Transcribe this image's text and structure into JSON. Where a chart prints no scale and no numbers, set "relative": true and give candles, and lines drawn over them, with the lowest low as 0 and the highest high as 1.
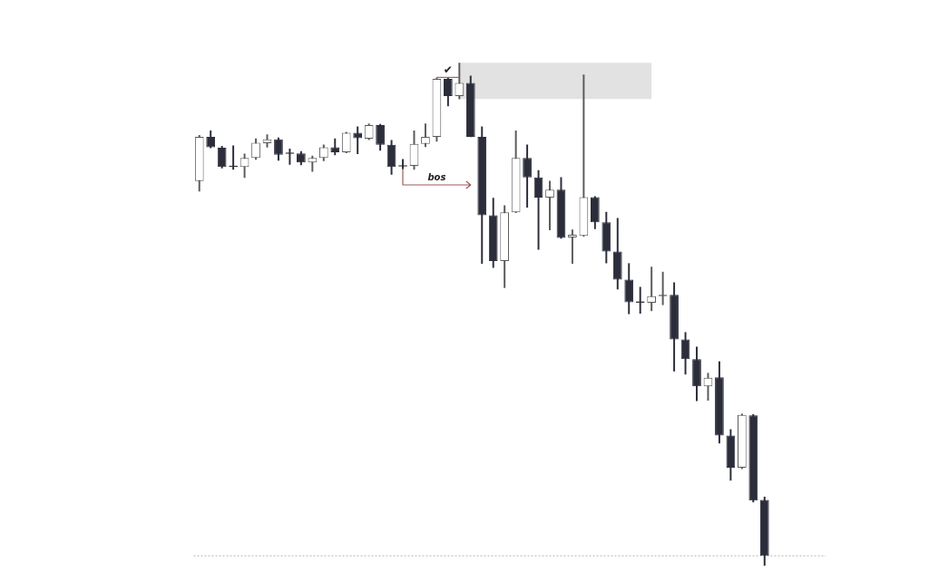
{
  "chart_data": {
    "type": "candlestick",
    "relative": true,
    "tick_labels": false,
    "categories": [
      null,
      null,
      null,
      null,
      null,
      null,
      null,
      null,
      null,
      null,
      null,
      null,
      null,
      null,
      null,
      null,
      null,
      null,
      null,
      null,
      null,
      null,
      null,
      null,
      null,
      null,
      null,
      null,
      null,
      null,
      null,
      null,
      null,
      null,
      null,
      null,
      null,
      null,
      null,
      null,
      null,
      null,
      null,
      null,
      null,
      null,
      null,
      null,
      null,
      null,
      null
    ],
    "ohlc": [
      [
        0.765,
        0.856,
        0.745,
        0.853
      ],
      [
        0.853,
        0.865,
        0.831,
        0.832
      ],
      [
        0.831,
        0.834,
        0.791,
        0.793
      ],
      [
        0.794,
        0.835,
        0.788,
        0.793
      ],
      [
        0.793,
        0.819,
        0.772,
        0.811
      ],
      [
        0.811,
        0.849,
        0.808,
        0.841
      ],
      [
        0.84,
        0.857,
        0.832,
        0.848
      ],
      [
        0.848,
        0.851,
        0.806,
        0.817
      ],
      [
        0.82,
        0.829,
        0.798,
        0.819
      ],
      [
        0.82,
        0.824,
        0.797,
        0.802
      ],
      [
        0.802,
        0.815,
        0.784,
        0.811
      ],
      [
        0.811,
        0.837,
        0.805,
        0.832
      ],
      [
        0.832,
        0.849,
        0.817,
        0.822
      ],
      [
        0.822,
        0.862,
        0.821,
        0.861
      ],
      [
        0.861,
        0.873,
        0.819,
        0.85
      ],
      [
        0.849,
        0.879,
        0.847,
        0.876
      ],
      [
        0.876,
        0.878,
        0.826,
        0.837
      ],
      [
        0.837,
        0.846,
        0.778,
        0.793
      ],
      [
        0.795,
        0.808,
        0.789,
        0.794
      ],
      [
        0.795,
        0.865,
        0.788,
        0.839
      ],
      [
        0.839,
        0.879,
        0.833,
        0.853
      ],
      [
        0.853,
        0.97,
        0.844,
        0.968
      ],
      [
        0.968,
        0.97,
        0.914,
        0.934
      ],
      [
        0.934,
        1.0,
        0.928,
        0.96
      ],
      [
        0.96,
        0.974,
        0.853,
        0.853
      ],
      [
        0.853,
        0.873,
        0.601,
        0.697
      ],
      [
        0.697,
        0.731,
        0.593,
        0.606
      ],
      [
        0.606,
        0.716,
        0.553,
        0.703
      ],
      [
        0.703,
        0.865,
        0.702,
        0.811
      ],
      [
        0.811,
        0.837,
        0.713,
        0.772
      ],
      [
        0.772,
        0.786,
        0.629,
        0.732
      ],
      [
        0.732,
        0.765,
        0.668,
        0.748
      ],
      [
        0.748,
        0.772,
        0.651,
        0.652
      ],
      [
        0.653,
        0.668,
        0.601,
        0.658
      ],
      [
        0.656,
        0.976,
        0.655,
        0.733
      ],
      [
        0.733,
        0.734,
        0.67,
        0.683
      ],
      [
        0.683,
        0.703,
        0.602,
        0.625
      ],
      [
        0.625,
        0.691,
        0.55,
        0.569
      ],
      [
        0.569,
        0.601,
        0.501,
        0.524
      ],
      [
        0.524,
        0.554,
        0.502,
        0.523
      ],
      [
        0.523,
        0.594,
        0.507,
        0.536
      ],
      [
        0.536,
        0.584,
        0.519,
        0.539
      ],
      [
        0.539,
        0.563,
        0.387,
        0.45
      ],
      [
        0.45,
        0.464,
        0.381,
        0.411
      ],
      [
        0.411,
        0.435,
        0.328,
        0.357
      ],
      [
        0.357,
        0.383,
        0.329,
        0.374
      ],
      [
        0.375,
        0.406,
        0.244,
        0.259
      ],
      [
        0.259,
        0.271,
        0.17,
        0.195
      ],
      [
        0.195,
        0.302,
        0.193,
        0.3
      ],
      [
        0.299,
        0.301,
        0.127,
        0.13
      ],
      [
        0.131,
        0.137,
        0.0,
        0.02
      ]
    ],
    "colors": [
      "#5a5a5a",
      "#2b2d3a",
      "#2b2d3a",
      "#2b2d3a",
      "#5a5a5a",
      "#5a5a5a",
      "#5a5a5a",
      "#2b2d3a",
      "#2b2d3a",
      "#2b2d3a",
      "#5a5a5a",
      "#5a5a5a",
      "#2b2d3a",
      "#5a5a5a",
      "#2b2d3a",
      "#5a5a5a",
      "#2b2d3a",
      "#2b2d3a",
      "#2b2d3a",
      "#5a5a5a",
      "#5a5a5a",
      "#5a5a5a",
      "#2b2d3a",
      "#5a5a5a",
      "#2b2d3a",
      "#2b2d3a",
      "#2b2d3a",
      "#5a5a5a",
      "#5a5a5a",
      "#2b2d3a",
      "#2b2d3a",
      "#5a5a5a",
      "#2b2d3a",
      "#5a5a5a",
      "#5a5a5a",
      "#2b2d3a",
      "#2b2d3a",
      "#2b2d3a",
      "#2b2d3a",
      "#2b2d3a",
      "#5a5a5a",
      "#5a5a5a",
      "#2b2d3a",
      "#2b2d3a",
      "#2b2d3a",
      "#5a5a5a",
      "#2b2d3a",
      "#2b2d3a",
      "#5a5a5a",
      "#2b2d3a",
      "#2b2d3a"
    ],
    "bands": [
      {
        "axis": "y",
        "from": 0.928,
        "to": 1.0,
        "color": "#e2e2e2"
      }
    ],
    "ref_lines": [
      {
        "axis": "y",
        "value": 0.02,
        "color": "#b5b5b5",
        "line_style": "dotted"
      }
    ],
    "annotations": [
      {
        "text": "✔",
        "y": 0.971
      },
      "bos"
    ]
  }
}
